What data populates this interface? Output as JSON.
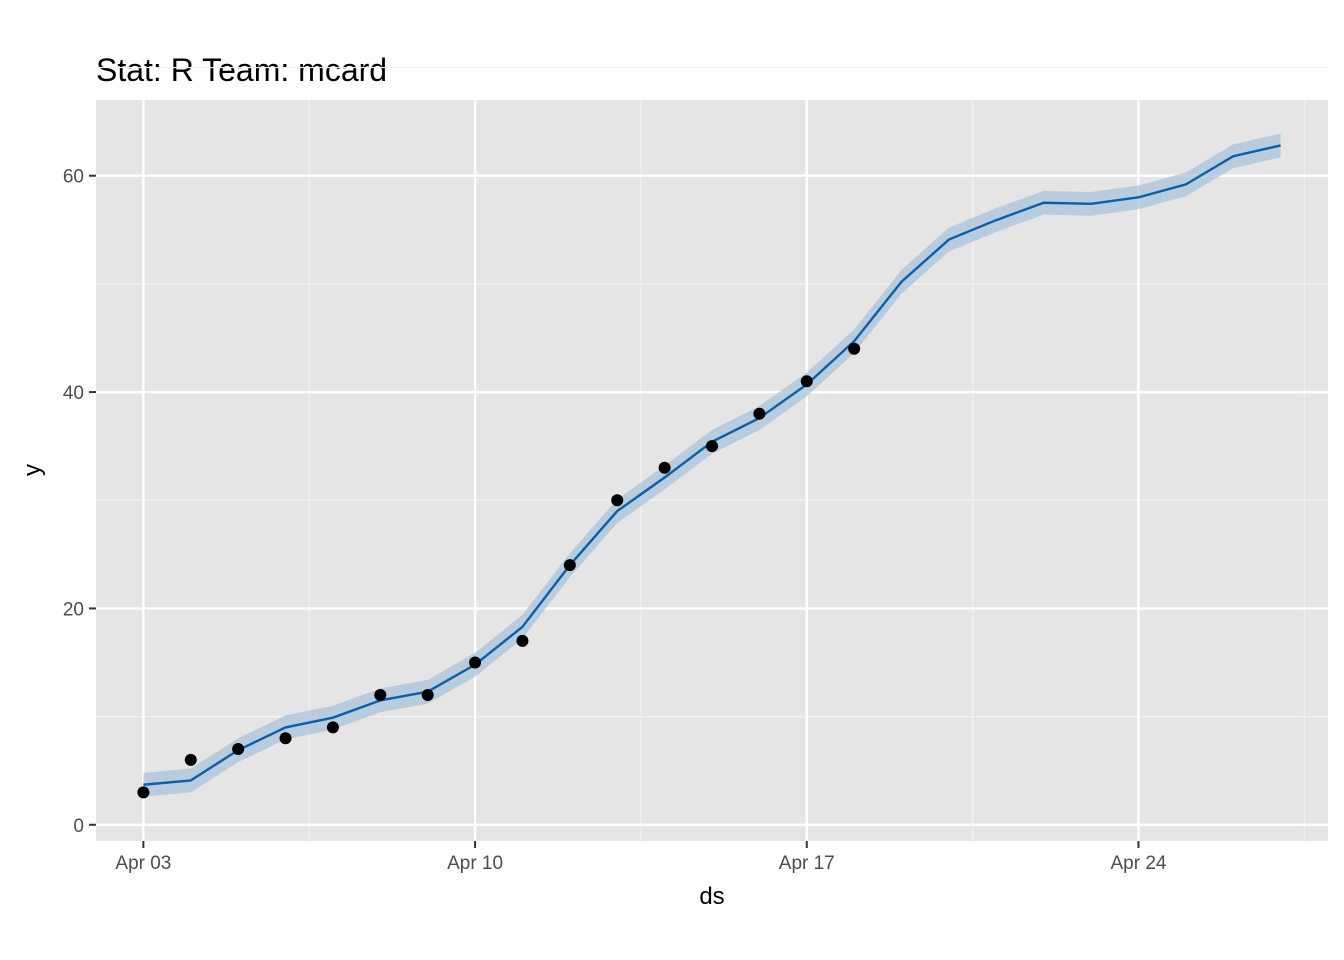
{
  "colors": {
    "panel": "#e5e5e5",
    "grid_major": "#ffffff",
    "grid_minor": "#f2f2f2",
    "forecast_line": "#0a5fa8",
    "interval_band": "#a9c3d9",
    "observed_points": "#000000",
    "tick_text": "#4d4d4d"
  },
  "chart_data": {
    "type": "line",
    "title": "Stat: R Team: mcard",
    "xlabel": "ds",
    "ylabel": "y",
    "x_axis_type": "date",
    "xlim": [
      "2020-04-02",
      "2020-04-28"
    ],
    "ylim": [
      -1.5,
      67
    ],
    "x_ticks": [
      "2020-04-03",
      "2020-04-10",
      "2020-04-17",
      "2020-04-24"
    ],
    "x_tick_labels": [
      "Apr 03",
      "Apr 10",
      "Apr 17",
      "Apr 24"
    ],
    "y_ticks": [
      0,
      20,
      40,
      60
    ],
    "y_tick_labels": [
      "0",
      "20",
      "40",
      "60"
    ],
    "grid": true,
    "observed": {
      "x": [
        "2020-04-03",
        "2020-04-04",
        "2020-04-05",
        "2020-04-06",
        "2020-04-07",
        "2020-04-08",
        "2020-04-09",
        "2020-04-10",
        "2020-04-11",
        "2020-04-12",
        "2020-04-13",
        "2020-04-14",
        "2020-04-15",
        "2020-04-16",
        "2020-04-17",
        "2020-04-18"
      ],
      "y": [
        3,
        6,
        7,
        8,
        9,
        12,
        12,
        15,
        17,
        24,
        30,
        33,
        35,
        38,
        41,
        44
      ]
    },
    "forecast": {
      "x": [
        "2020-04-03",
        "2020-04-04",
        "2020-04-05",
        "2020-04-06",
        "2020-04-07",
        "2020-04-08",
        "2020-04-09",
        "2020-04-10",
        "2020-04-11",
        "2020-04-12",
        "2020-04-13",
        "2020-04-14",
        "2020-04-15",
        "2020-04-16",
        "2020-04-17",
        "2020-04-18",
        "2020-04-19",
        "2020-04-20",
        "2020-04-21",
        "2020-04-22",
        "2020-04-23",
        "2020-04-24",
        "2020-04-25",
        "2020-04-26",
        "2020-04-27"
      ],
      "yhat": [
        3.7,
        4.1,
        6.9,
        9.0,
        9.9,
        11.5,
        12.3,
        14.8,
        18.3,
        24.0,
        29.0,
        32.1,
        35.4,
        37.6,
        40.7,
        44.7,
        50.2,
        54.1,
        55.9,
        57.5,
        57.4,
        58.0,
        59.2,
        61.8,
        62.8
      ],
      "yhat_lower": [
        2.6,
        3.0,
        5.8,
        7.9,
        8.8,
        10.4,
        11.2,
        13.7,
        17.2,
        22.9,
        27.9,
        31.0,
        34.3,
        36.5,
        39.6,
        43.6,
        49.1,
        53.0,
        54.8,
        56.4,
        56.3,
        56.9,
        58.1,
        60.7,
        61.7
      ],
      "yhat_upper": [
        4.8,
        5.2,
        8.0,
        10.1,
        11.0,
        12.6,
        13.4,
        15.9,
        19.4,
        25.1,
        30.1,
        33.2,
        36.5,
        38.7,
        41.8,
        45.8,
        51.3,
        55.2,
        57.0,
        58.6,
        58.5,
        59.1,
        60.3,
        62.9,
        63.9
      ]
    }
  }
}
